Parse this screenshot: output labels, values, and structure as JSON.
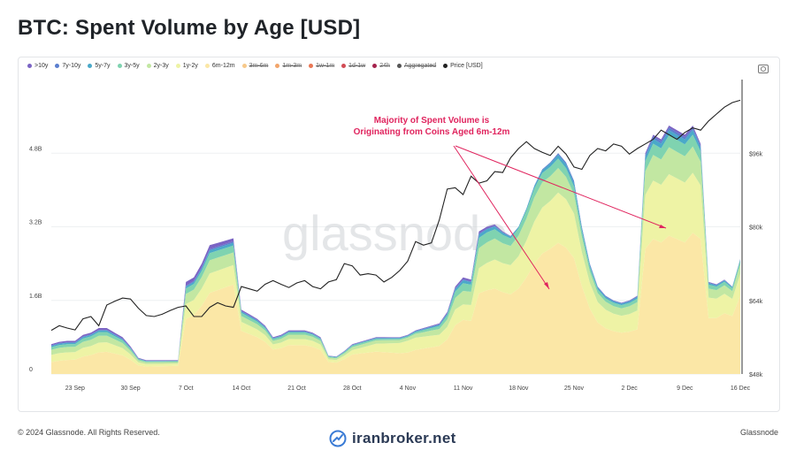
{
  "header": {
    "title": "BTC: Spent Volume by Age [USD]"
  },
  "legend": [
    {
      "label": ">10y",
      "color": "#7b64c4",
      "active": true
    },
    {
      "label": "7y-10y",
      "color": "#5b7fcf",
      "active": true
    },
    {
      "label": "5y-7y",
      "color": "#4aa9c9",
      "active": true
    },
    {
      "label": "3y-5y",
      "color": "#7fd3b0",
      "active": true
    },
    {
      "label": "2y-3y",
      "color": "#c2e7a2",
      "active": true
    },
    {
      "label": "1y-2y",
      "color": "#eef3a5",
      "active": true
    },
    {
      "label": "6m-12m",
      "color": "#fbe7a6",
      "active": true
    },
    {
      "label": "3m-6m",
      "color": "#f7c98a",
      "active": false
    },
    {
      "label": "1m-3m",
      "color": "#f2a56b",
      "active": false
    },
    {
      "label": "1w-1m",
      "color": "#ea7754",
      "active": false
    },
    {
      "label": "1d-1w",
      "color": "#d24c55",
      "active": false
    },
    {
      "label": "24h",
      "color": "#a5234d",
      "active": false
    },
    {
      "label": "Aggregated",
      "color": "#555555",
      "active": false
    },
    {
      "label": "Price [USD]",
      "color": "#222222",
      "active": true
    }
  ],
  "watermark": "glassnode",
  "annotation": {
    "line1": "Majority of Spent Volume is",
    "line2": "Originating from Coins Aged 6m-12m",
    "color": "#e0245e"
  },
  "footer": {
    "copyright": "© 2024 Glassnode. All Rights Reserved.",
    "brand": "iranbroker.net",
    "source": "Glassnode"
  },
  "chart_data": {
    "type": "area",
    "stacked": true,
    "y_left": {
      "ticks": [
        "0",
        "1.6B",
        "3.2B",
        "4.8B"
      ],
      "values": [
        0,
        1.6,
        3.2,
        4.8
      ],
      "range": [
        0,
        6.4
      ],
      "unit": "B USD"
    },
    "y_right": {
      "ticks": [
        "$48k",
        "$64k",
        "$80k",
        "$96k"
      ],
      "values": [
        48,
        64,
        80,
        96
      ],
      "range": [
        48,
        112
      ],
      "unit": "k USD"
    },
    "x_ticks": [
      {
        "label": "23 Sep",
        "day": 3
      },
      {
        "label": "30 Sep",
        "day": 10
      },
      {
        "label": "7 Oct",
        "day": 17
      },
      {
        "label": "14 Oct",
        "day": 24
      },
      {
        "label": "21 Oct",
        "day": 31
      },
      {
        "label": "28 Oct",
        "day": 38
      },
      {
        "label": "4 Nov",
        "day": 45
      },
      {
        "label": "11 Nov",
        "day": 52
      },
      {
        "label": "18 Nov",
        "day": 59
      },
      {
        "label": "25 Nov",
        "day": 66
      },
      {
        "label": "2 Dec",
        "day": 73
      },
      {
        "label": "9 Dec",
        "day": 80
      },
      {
        "label": "16 Dec",
        "day": 87
      }
    ],
    "series_names": [
      "6m-12m",
      "1y-2y",
      "2y-3y",
      "3y-5y",
      "5y-7y",
      "7y-10y",
      ">10y"
    ],
    "series_colors": [
      "#fbe7a6",
      "#eef3a5",
      "#c2e7a2",
      "#7fd3b0",
      "#4aa9c9",
      "#5b7fcf",
      "#7b64c4"
    ],
    "total": [
      0.65,
      0.7,
      0.72,
      0.72,
      0.85,
      0.9,
      1.0,
      1.0,
      0.9,
      0.8,
      0.6,
      0.35,
      0.3,
      0.3,
      0.3,
      0.3,
      0.3,
      2.0,
      2.1,
      2.4,
      2.8,
      2.85,
      2.9,
      2.95,
      1.4,
      1.3,
      1.2,
      1.05,
      0.8,
      0.85,
      0.95,
      0.95,
      0.95,
      0.9,
      0.8,
      0.4,
      0.38,
      0.5,
      0.65,
      0.7,
      0.75,
      0.8,
      0.8,
      0.8,
      0.8,
      0.85,
      0.95,
      1.0,
      1.05,
      1.1,
      1.35,
      1.9,
      2.1,
      2.05,
      3.1,
      3.2,
      3.25,
      3.1,
      3.0,
      3.2,
      3.6,
      4.1,
      4.45,
      4.6,
      4.8,
      4.6,
      4.2,
      3.2,
      2.4,
      1.9,
      1.7,
      1.6,
      1.55,
      1.6,
      1.7,
      4.8,
      5.2,
      5.1,
      5.4,
      5.3,
      5.2,
      5.4,
      5.0,
      2.0,
      1.95,
      2.05,
      1.9,
      2.5
    ],
    "shares": [
      [
        0.4,
        0.24,
        0.17,
        0.09,
        0.04,
        0.02,
        0.04
      ],
      [
        0.6,
        0.16,
        0.11,
        0.06,
        0.02,
        0.01,
        0.04
      ],
      [
        0.67,
        0.14,
        0.09,
        0.05,
        0.02,
        0.01,
        0.02
      ],
      [
        0.66,
        0.14,
        0.1,
        0.05,
        0.02,
        0.01,
        0.02
      ],
      [
        0.65,
        0.15,
        0.1,
        0.05,
        0.02,
        0.01,
        0.02
      ],
      [
        0.55,
        0.3,
        0.08,
        0.03,
        0.02,
        0.01,
        0.01
      ],
      [
        0.56,
        0.16,
        0.14,
        0.08,
        0.03,
        0.01,
        0.02
      ],
      [
        0.58,
        0.22,
        0.14,
        0.05,
        0.01,
        0.0,
        0.0
      ],
      [
        0.6,
        0.23,
        0.1,
        0.04,
        0.02,
        0.01,
        0.0
      ],
      [
        0.55,
        0.25,
        0.11,
        0.05,
        0.02,
        0.01,
        0.01
      ],
      [
        0.7,
        0.18,
        0.08,
        0.03,
        0.01,
        0.0,
        0.0
      ]
    ],
    "share_days": [
      0,
      17,
      24,
      31,
      38,
      45,
      52,
      59,
      66,
      80,
      88
    ],
    "price": [
      57.5,
      58.5,
      58.0,
      57.6,
      60.0,
      60.5,
      58.5,
      63.0,
      63.8,
      64.5,
      64.3,
      62.3,
      60.7,
      60.5,
      61.0,
      61.8,
      62.5,
      62.8,
      60.5,
      60.5,
      62.5,
      63.5,
      62.8,
      62.5,
      67.0,
      66.5,
      66.0,
      67.5,
      68.3,
      67.5,
      66.8,
      67.8,
      68.3,
      67.0,
      66.5,
      68.0,
      68.5,
      72.0,
      71.5,
      69.5,
      69.8,
      69.5,
      68.0,
      69.0,
      70.5,
      72.5,
      76.8,
      76.0,
      76.5,
      81.5,
      88.2,
      88.5,
      87.0,
      91.0,
      89.5,
      90.0,
      92.0,
      91.8,
      95.0,
      97.0,
      98.5,
      97.0,
      96.2,
      95.5,
      97.5,
      95.8,
      93.0,
      92.5,
      95.5,
      97.0,
      96.5,
      98.0,
      97.5,
      95.8,
      97.0,
      98.0,
      99.0,
      101.0,
      100.0,
      99.0,
      100.5,
      101.5,
      101.0,
      103.0,
      104.5,
      106.0,
      107.0,
      107.5
    ]
  }
}
